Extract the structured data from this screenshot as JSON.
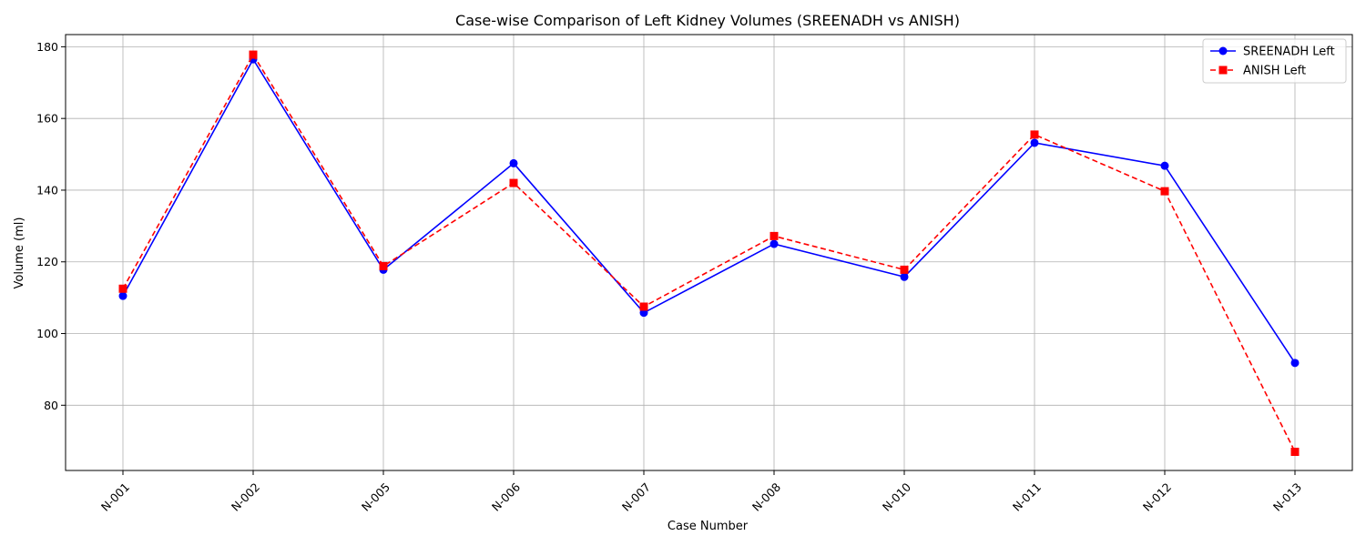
{
  "chart_data": {
    "type": "line",
    "title": "Case-wise Comparison of Left Kidney Volumes (SREENADH vs ANISH)",
    "xlabel": "Case Number",
    "ylabel": "Volume (ml)",
    "categories": [
      "N-001",
      "N-002",
      "N-005",
      "N-006",
      "N-007",
      "N-008",
      "N-010",
      "N-011",
      "N-012",
      "N-013"
    ],
    "ylim": [
      61.8,
      183.4
    ],
    "yticks": [
      80,
      100,
      120,
      140,
      160,
      180
    ],
    "grid": true,
    "legend_position": "top-right",
    "series": [
      {
        "name": "SREENADH Left",
        "color": "#0000ff",
        "line_style": "solid",
        "marker": "circle",
        "values": [
          110.5,
          176.5,
          117.8,
          147.5,
          105.8,
          125.0,
          115.8,
          153.2,
          146.8,
          91.8
        ]
      },
      {
        "name": "ANISH Left",
        "color": "#ff0000",
        "line_style": "dashed",
        "marker": "square",
        "values": [
          112.5,
          177.8,
          118.8,
          142.0,
          107.5,
          127.2,
          117.8,
          155.5,
          139.7,
          67.0
        ]
      }
    ]
  }
}
